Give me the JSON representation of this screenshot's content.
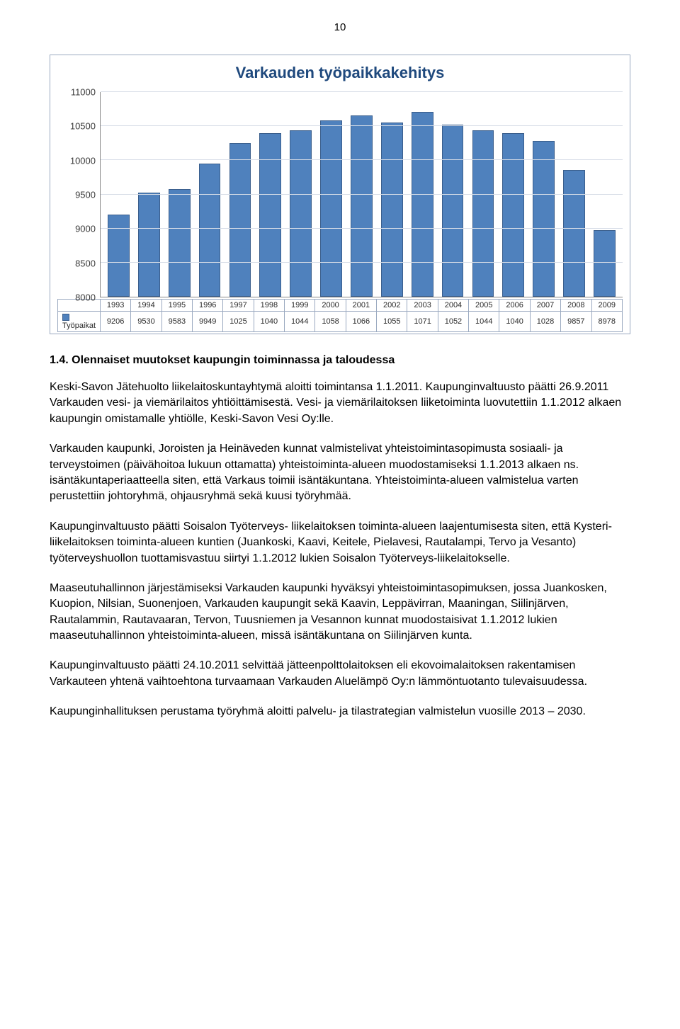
{
  "page_number": "10",
  "chart": {
    "type": "bar",
    "title": "Varkauden työpaikkakehitys",
    "title_color": "#1f497d",
    "title_fontsize": 22,
    "bar_color": "#4f81bd",
    "bar_border_color": "#3a5e8c",
    "grid_color": "#d7dde7",
    "axis_color": "#888888",
    "y_min": 8000,
    "y_max": 11000,
    "y_tick_step": 500,
    "y_ticks": [
      "8000",
      "8500",
      "9000",
      "9500",
      "10000",
      "10500",
      "11000"
    ],
    "row_label_years": "",
    "row_label_values": "Työpaikat",
    "years": [
      "1993",
      "1994",
      "1995",
      "1996",
      "1997",
      "1998",
      "1999",
      "2000",
      "2001",
      "2002",
      "2003",
      "2004",
      "2005",
      "2006",
      "2007",
      "2008",
      "2009"
    ],
    "values_display": [
      "9206",
      "9530",
      "9583",
      "9949",
      "1025",
      "1040",
      "1044",
      "1058",
      "1066",
      "1055",
      "1071",
      "1052",
      "1044",
      "1040",
      "1028",
      "9857",
      "8978"
    ],
    "values_numeric": [
      9206,
      9530,
      9583,
      9949,
      10250,
      10400,
      10440,
      10580,
      10660,
      10550,
      10710,
      10520,
      10440,
      10400,
      10280,
      9857,
      8978
    ]
  },
  "section_heading": "1.4.    Olennaiset muutokset kaupungin toiminnassa ja taloudessa",
  "paragraphs": [
    "Keski-Savon Jätehuolto liikelaitoskuntayhtymä aloitti toimintansa 1.1.2011. Kaupunginvaltuusto päätti 26.9.2011 Varkauden vesi- ja viemärilaitos yhtiöittämisestä. Vesi- ja viemärilaitoksen liiketoiminta luovutettiin 1.1.2012 alkaen kaupungin omistamalle yhtiölle, Keski-Savon Vesi Oy:lle.",
    "Varkauden kaupunki, Joroisten ja Heinäveden kunnat valmistelivat yhteistoimintasopimusta sosiaali- ja terveystoimen (päivähoitoa lukuun ottamatta) yhteistoiminta-alueen muodostamiseksi 1.1.2013 alkaen ns. isäntäkuntaperiaatteella siten, että Varkaus toimii isäntäkuntana. Yhteistoiminta-alueen valmistelua varten perustettiin johtoryhmä, ohjausryhmä sekä kuusi työryhmää.",
    "Kaupunginvaltuusto päätti Soisalon Työterveys- liikelaitoksen toiminta-alueen laajentumisesta siten, että Kysteri-liikelaitoksen toiminta-alueen kuntien (Juankoski, Kaavi, Keitele, Pielavesi, Rautalampi, Tervo ja Vesanto) työterveyshuollon tuottamisvastuu siirtyi 1.1.2012 lukien Soisalon Työterveys-liikelaitokselle.",
    "Maaseutuhallinnon järjestämiseksi Varkauden kaupunki hyväksyi yhteistoimintasopimuksen, jossa Juankosken, Kuopion, Nilsian, Suonenjoen, Varkauden kaupungit sekä Kaavin, Leppävirran, Maaningan, Siilinjärven, Rautalammin, Rautavaaran, Tervon, Tuusniemen ja Vesannon kunnat muodostaisivat 1.1.2012 lukien maaseutuhallinnon yhteistoiminta-alueen, missä isäntäkuntana on Siilinjärven kunta.",
    "Kaupunginvaltuusto päätti 24.10.2011 selvittää jätteenpolttolaitoksen eli ekovoimalaitoksen rakentamisen Varkauteen yhtenä vaihtoehtona turvaamaan Varkauden Aluelämpö Oy:n lämmöntuotanto tulevaisuudessa.",
    "Kaupunginhallituksen perustama työryhmä aloitti palvelu- ja tilastrategian valmistelun vuosille 2013 – 2030."
  ]
}
